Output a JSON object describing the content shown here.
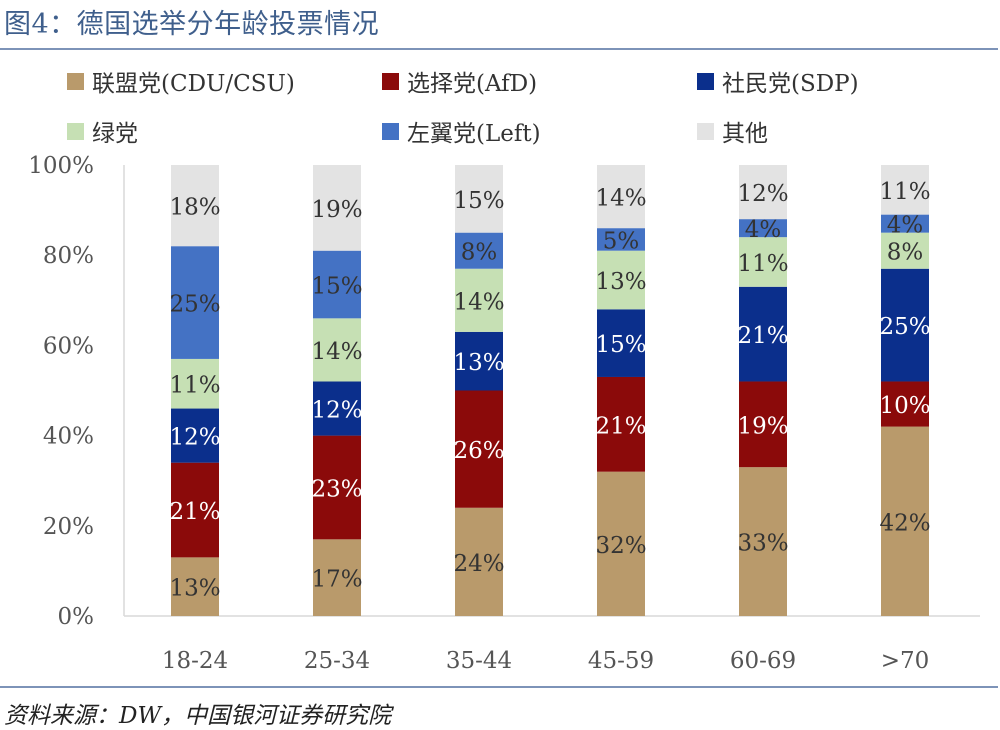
{
  "header": {
    "title": "图4：德国选举分年龄投票情况"
  },
  "footer": {
    "source": "资料来源：DW，中国银河证券研究院"
  },
  "chart_data": {
    "type": "bar",
    "stacked": true,
    "categories": [
      "18-24",
      "25-34",
      "35-44",
      "45-59",
      "60-69",
      ">70"
    ],
    "series": [
      {
        "name": "联盟党(CDU/CSU)",
        "color": "#b99a6b",
        "label_color": "#333333",
        "values": [
          13,
          17,
          24,
          32,
          33,
          42
        ],
        "labels": [
          "13%",
          "17%",
          "24%",
          "32%",
          "33%",
          "42%"
        ]
      },
      {
        "name": "选择党(AfD)",
        "color": "#8b0a0a",
        "label_color": "#ffffff",
        "values": [
          21,
          23,
          26,
          21,
          19,
          10
        ],
        "labels": [
          "21%",
          "23%",
          "26%",
          "21%",
          "19%",
          "10%"
        ]
      },
      {
        "name": "社民党(SDP)",
        "color": "#0b2f8c",
        "label_color": "#ffffff",
        "values": [
          12,
          12,
          13,
          15,
          21,
          25
        ],
        "labels": [
          "12%",
          "12%",
          "13%",
          "15%",
          "21%",
          "25%"
        ]
      },
      {
        "name": "绿党",
        "color": "#c6e0b4",
        "label_color": "#333333",
        "values": [
          11,
          14,
          14,
          13,
          11,
          8
        ],
        "labels": [
          "11%",
          "14%",
          "14%",
          "13%",
          "11%",
          "8%"
        ]
      },
      {
        "name": "左翼党(Left)",
        "color": "#4472c4",
        "label_color": "#333333",
        "values": [
          25,
          15,
          8,
          5,
          4,
          4
        ],
        "labels": [
          "25%",
          "15%",
          "8%",
          "5%",
          "4%",
          "4%"
        ]
      },
      {
        "name": "其他",
        "color": "#e3e3e3",
        "label_color": "#333333",
        "values": [
          18,
          19,
          15,
          14,
          12,
          11
        ],
        "labels": [
          "18%",
          "19%",
          "15%",
          "14%",
          "12%",
          "11%"
        ]
      }
    ],
    "y_ticks": [
      "0%",
      "20%",
      "40%",
      "60%",
      "80%",
      "100%"
    ],
    "ylim": [
      0,
      100
    ],
    "legend_position": "top",
    "grid": false
  }
}
